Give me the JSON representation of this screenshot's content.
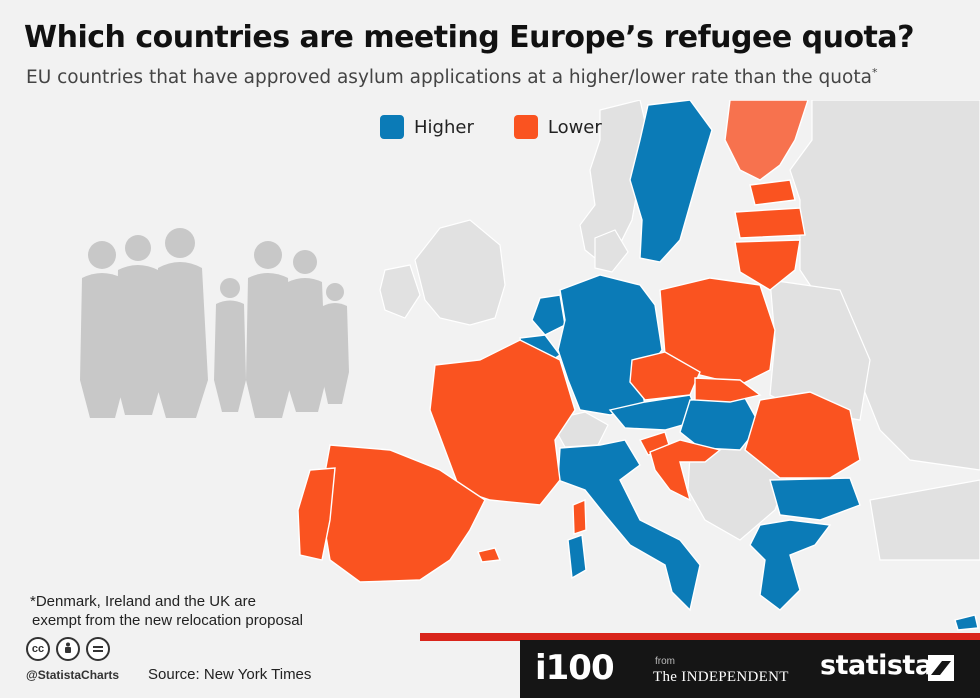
{
  "header": {
    "title": "Which countries are meeting Europe’s refugee quota?",
    "subtitle": "EU countries that have approved asylum applications at a higher/lower rate than the quota",
    "subtitle_mark": "*"
  },
  "legend": {
    "items": [
      {
        "label": "Higher",
        "color": "#0b7bb7"
      },
      {
        "label": "Lower",
        "color": "#fa5320"
      }
    ]
  },
  "map": {
    "colors": {
      "higher": "#0b7bb7",
      "lower": "#fa5320",
      "finland": "#f7724e",
      "land": "#e1e1e1",
      "sea": "#f2f2f2",
      "silhouette": "#c8c8c8"
    },
    "icon": "family-silhouette-icon"
  },
  "footer": {
    "footnote_line1": "*Denmark, Ireland and the UK are",
    "footnote_line2": "exempt from the new relocation proposal",
    "handle": "@StatistaCharts",
    "source": "Source: New York Times",
    "brand_i100": "i100",
    "brand_from": "from",
    "brand_independent": "The INDEPENDENT",
    "brand_statista": "statista",
    "license_icons": [
      "cc-icon",
      "by-icon",
      "nd-icon"
    ]
  }
}
